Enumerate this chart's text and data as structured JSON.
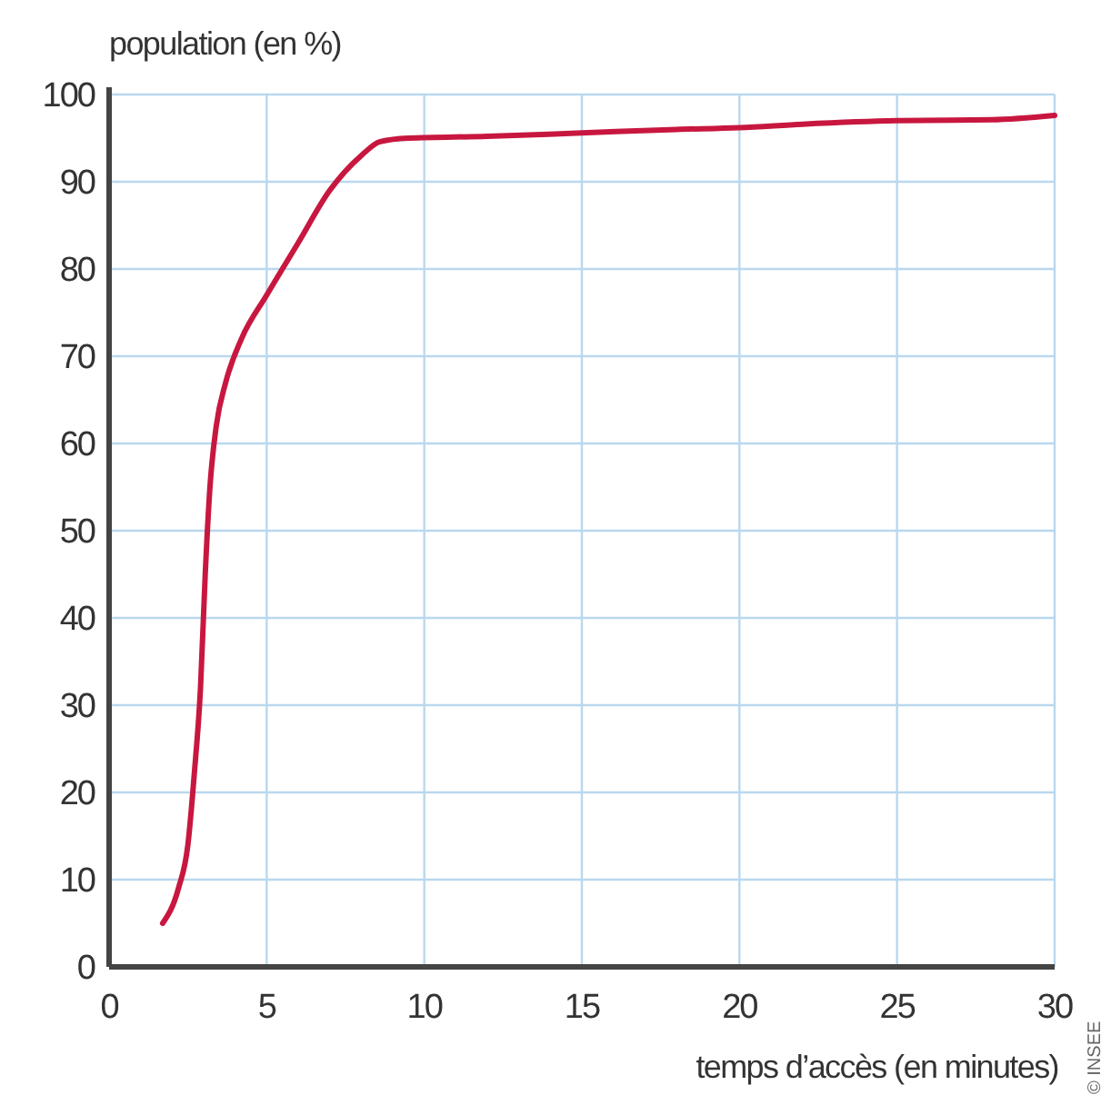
{
  "chart_data": {
    "type": "line",
    "xlabel": "temps d’accès (en minutes)",
    "ylabel": "population (en %)",
    "annotations": [
      "© INSEE"
    ],
    "x": [
      1.7,
      2.2,
      2.5,
      2.7,
      2.9,
      3.05,
      3.2,
      3.4,
      3.7,
      4.2,
      5,
      6,
      7,
      8,
      8.6,
      9.5,
      12,
      15,
      18,
      20,
      22,
      25,
      28,
      30
    ],
    "series": [
      {
        "color": "#c8173f",
        "values": [
          5,
          9,
          14,
          22,
          32,
          45,
          55,
          62,
          67,
          72,
          77,
          83,
          89,
          93,
          94.6,
          95,
          95.2,
          95.6,
          96,
          96.2,
          96.6,
          97,
          97.1,
          97.6
        ]
      }
    ],
    "xlim": [
      0,
      30
    ],
    "xticks": [
      0,
      5,
      10,
      15,
      20,
      25,
      30
    ],
    "ylim": [
      0,
      100
    ],
    "yticks": [
      0,
      10,
      20,
      30,
      40,
      50,
      60,
      70,
      80,
      90,
      100
    ],
    "grid": true,
    "marker": "none",
    "line_style": "solid"
  }
}
